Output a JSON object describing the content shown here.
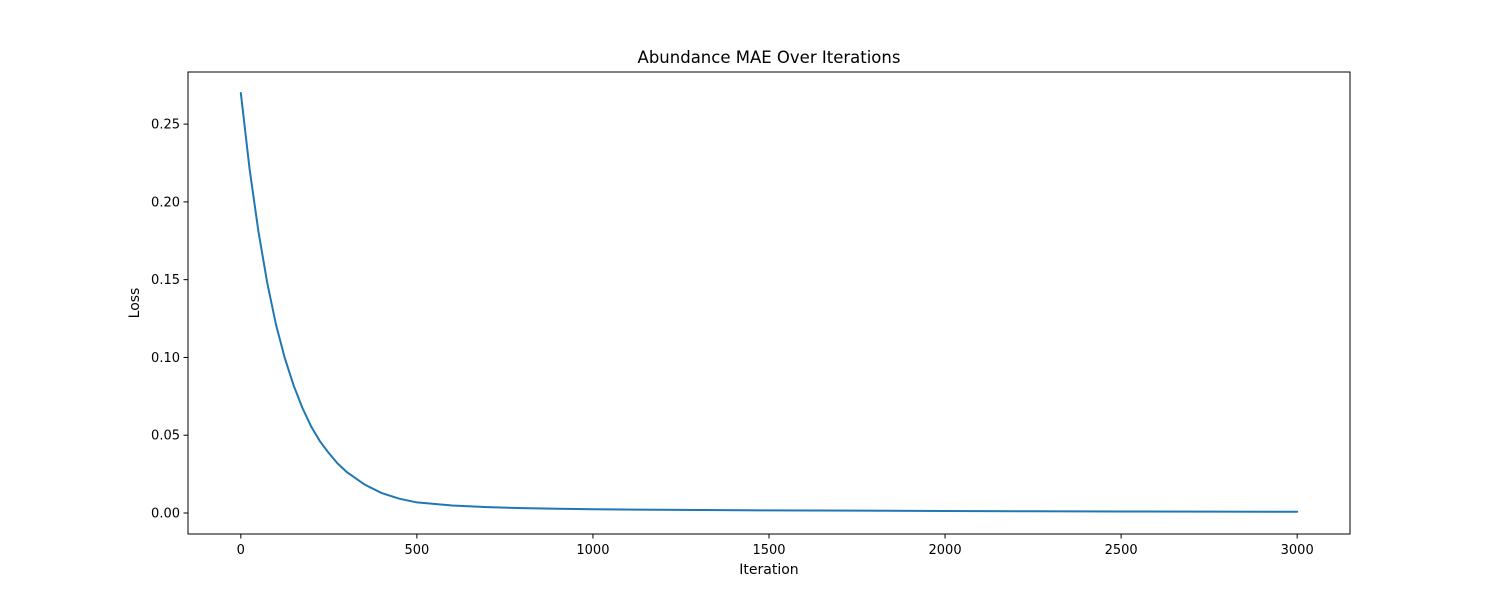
{
  "chart_data": {
    "type": "line",
    "title": "Abundance MAE Over Iterations",
    "xlabel": "Iteration",
    "ylabel": "Loss",
    "xlim": [
      -150,
      3150
    ],
    "ylim": [
      -0.0135,
      0.2835
    ],
    "xticks": [
      0,
      500,
      1000,
      1500,
      2000,
      2500,
      3000
    ],
    "xtick_labels": [
      "0",
      "500",
      "1000",
      "1500",
      "2000",
      "2500",
      "3000"
    ],
    "yticks": [
      0.0,
      0.05,
      0.1,
      0.15,
      0.2,
      0.25
    ],
    "ytick_labels": [
      "0.00",
      "0.05",
      "0.10",
      "0.15",
      "0.20",
      "0.25"
    ],
    "grid": false,
    "legend": false,
    "series": [
      {
        "color": "#1f77b4",
        "x": [
          0,
          25,
          50,
          75,
          100,
          125,
          150,
          175,
          200,
          225,
          250,
          275,
          300,
          350,
          400,
          450,
          500,
          600,
          700,
          800,
          900,
          1000,
          1250,
          1500,
          1750,
          2000,
          2250,
          2500,
          2750,
          3000
        ],
        "y": [
          0.27,
          0.221,
          0.181,
          0.148,
          0.121,
          0.0995,
          0.082,
          0.0675,
          0.0555,
          0.046,
          0.0385,
          0.0318,
          0.0265,
          0.0185,
          0.0128,
          0.0092,
          0.0068,
          0.0048,
          0.0038,
          0.0031,
          0.0027,
          0.0024,
          0.002,
          0.0017,
          0.0015,
          0.0013,
          0.0011,
          0.001,
          0.0009,
          0.0008
        ]
      }
    ]
  }
}
